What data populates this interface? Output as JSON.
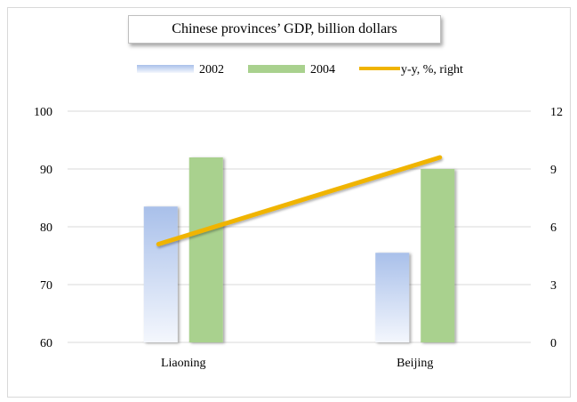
{
  "chart_data": {
    "type": "bar",
    "title": "Chinese provinces’ GDP, billion dollars",
    "categories": [
      "Liaoning",
      "Beijing"
    ],
    "series": [
      {
        "name": "2002",
        "values": [
          83.5,
          75.5
        ],
        "axis": "left",
        "color": "#a9c0ea"
      },
      {
        "name": "2004",
        "values": [
          92,
          90
        ],
        "axis": "left",
        "color": "#a9d18e"
      },
      {
        "name": "y-y, %, right",
        "type": "line",
        "values": [
          5.1,
          9.6
        ],
        "axis": "right",
        "color": "#f0b400"
      }
    ],
    "y_left": {
      "ylim": [
        60,
        100
      ],
      "ticks": [
        "100",
        "90",
        "80",
        "70",
        "60"
      ]
    },
    "y_right": {
      "ylim": [
        0,
        12
      ],
      "ticks": [
        "12",
        "9",
        "6",
        "3",
        "0"
      ]
    },
    "legend": "top",
    "grid": true
  }
}
